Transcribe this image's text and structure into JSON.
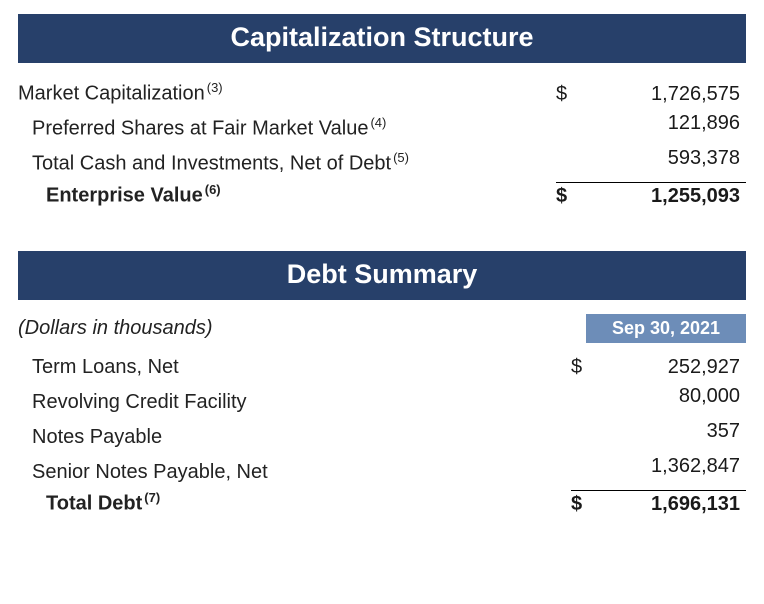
{
  "colors": {
    "header_bg": "#27406a",
    "header_text": "#ffffff",
    "badge_bg": "#6d8db8",
    "badge_text": "#ffffff",
    "body_text": "#1a1a1a",
    "rule": "#000000",
    "page_bg": "#ffffff"
  },
  "typography": {
    "header_fontsize": 27,
    "body_fontsize": 20,
    "footnote_fontsize": 13,
    "badge_fontsize": 18
  },
  "cap": {
    "title": "Capitalization Structure",
    "rows": [
      {
        "label": "Market Capitalization",
        "note": "(3)",
        "currency": "$",
        "value": "1,726,575",
        "indent": 0,
        "bold": false
      },
      {
        "label": "Preferred Shares at Fair Market Value",
        "note": "(4)",
        "currency": "",
        "value": "121,896",
        "indent": 1,
        "bold": false
      },
      {
        "label": "Total Cash and Investments, Net of Debt",
        "note": "(5)",
        "currency": "",
        "value": "593,378",
        "indent": 1,
        "bold": false
      },
      {
        "label": "Enterprise Value",
        "note": "(6)",
        "currency": "$",
        "value": "1,255,093",
        "indent": 2,
        "bold": true,
        "total": true
      }
    ]
  },
  "debt": {
    "title": "Debt Summary",
    "units": "(Dollars in thousands)",
    "date": "Sep 30, 2021",
    "rows": [
      {
        "label": "Term Loans, Net",
        "note": "",
        "currency": "$",
        "value": "252,927",
        "indent": 1,
        "bold": false
      },
      {
        "label": "Revolving Credit Facility",
        "note": "",
        "currency": "",
        "value": "80,000",
        "indent": 1,
        "bold": false
      },
      {
        "label": "Notes Payable",
        "note": "",
        "currency": "",
        "value": "357",
        "indent": 1,
        "bold": false
      },
      {
        "label": "Senior Notes Payable, Net",
        "note": "",
        "currency": "",
        "value": "1,362,847",
        "indent": 1,
        "bold": false
      },
      {
        "label": "Total Debt",
        "note": "(7)",
        "currency": "$",
        "value": "1,696,131",
        "indent": 2,
        "bold": true,
        "total": true
      }
    ]
  }
}
